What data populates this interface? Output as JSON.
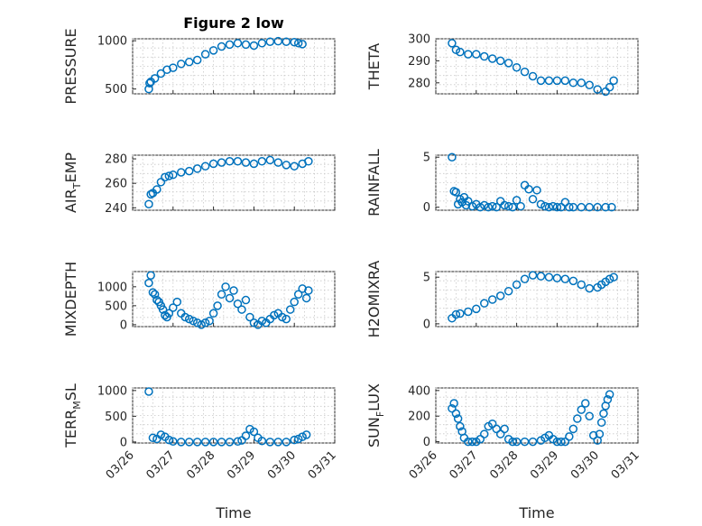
{
  "figure": {
    "background": "#ffffff",
    "marker_color": "#0072BD"
  },
  "chart_data": [
    {
      "type": "scatter",
      "panel": "pressure",
      "title": "Figure 2 low",
      "ylabel_main": "PRESSURE",
      "ylabel_sub": "",
      "ylabel_tail": "",
      "sub_kind": "",
      "yticks": [
        "500",
        "1000"
      ],
      "ytick_values": [
        500,
        1000
      ],
      "ylim": [
        450,
        1020
      ],
      "xlim": [
        0,
        5
      ],
      "xticks": [
        0,
        1,
        2,
        3,
        4,
        5
      ],
      "xticklabels": [],
      "xlabel": "",
      "x": [
        0.4,
        1.0,
        1.5,
        2.0,
        2.5,
        3.0,
        3.5,
        4.0
      ],
      "y": [
        520,
        680,
        760,
        880,
        960,
        970,
        990,
        975
      ],
      "series": [
        {
          "x": [
            0.4,
            0.42,
            0.45,
            0.55,
            0.7,
            0.85,
            1.0,
            1.2,
            1.4,
            1.6,
            1.8,
            2.0,
            2.2,
            2.4,
            2.6,
            2.8,
            3.0,
            3.2,
            3.4,
            3.6,
            3.8,
            4.0,
            4.1,
            4.2
          ],
          "y": [
            500,
            560,
            575,
            610,
            660,
            700,
            720,
            760,
            780,
            800,
            860,
            900,
            940,
            960,
            975,
            960,
            950,
            975,
            990,
            995,
            990,
            985,
            975,
            965
          ]
        }
      ]
    },
    {
      "type": "scatter",
      "panel": "theta",
      "title": "",
      "ylabel_main": "THETA",
      "ylabel_sub": "",
      "ylabel_tail": "",
      "sub_kind": "",
      "yticks": [
        "280",
        "290",
        "300"
      ],
      "ytick_values": [
        280,
        290,
        300
      ],
      "ylim": [
        275,
        300
      ],
      "xlim": [
        0,
        5
      ],
      "xticks": [
        0,
        1,
        2,
        3,
        4,
        5
      ],
      "xticklabels": [],
      "xlabel": "",
      "x": [
        0.4,
        0.5,
        0.6,
        0.8,
        1.0,
        1.2,
        1.4,
        1.6,
        1.8,
        2.0,
        2.2,
        2.4,
        2.6,
        2.8,
        3.0,
        3.2,
        3.4,
        3.6,
        3.8,
        4.0,
        4.2,
        4.3,
        4.4
      ],
      "y": [
        298,
        295,
        294,
        293,
        293,
        292,
        291,
        290,
        289,
        287,
        285,
        283,
        281,
        281,
        281,
        281,
        280,
        280,
        279,
        277,
        276,
        278,
        281
      ]
    },
    {
      "type": "scatter",
      "panel": "air_temp",
      "title": "",
      "ylabel_main": "AIR",
      "ylabel_sub": "T",
      "ylabel_tail": "EMP",
      "sub_kind": "sub",
      "yticks": [
        "240",
        "260",
        "280"
      ],
      "ytick_values": [
        240,
        260,
        280
      ],
      "ylim": [
        238,
        283
      ],
      "xlim": [
        0,
        5
      ],
      "xticks": [
        0,
        1,
        2,
        3,
        4,
        5
      ],
      "xticklabels": [],
      "xlabel": "",
      "x": [
        0.4,
        0.45,
        0.5,
        0.6,
        0.7,
        0.8,
        0.9,
        1.0,
        1.2,
        1.4,
        1.6,
        1.8,
        2.0,
        2.2,
        2.4,
        2.6,
        2.8,
        3.0,
        3.2,
        3.4,
        3.6,
        3.8,
        4.0,
        4.2,
        4.35
      ],
      "y": [
        243,
        251,
        252,
        255,
        261,
        265,
        266,
        267,
        269,
        270,
        272,
        274,
        276,
        277,
        278,
        278,
        277,
        276,
        278,
        279,
        277,
        275,
        274,
        276,
        278
      ]
    },
    {
      "type": "scatter",
      "panel": "rainfall",
      "title": "",
      "ylabel_main": "RAINFALL",
      "ylabel_sub": "",
      "ylabel_tail": "",
      "sub_kind": "",
      "yticks": [
        "0",
        "5"
      ],
      "ytick_values": [
        0,
        5
      ],
      "ylim": [
        -0.3,
        5.2
      ],
      "xlim": [
        0,
        5
      ],
      "xticks": [
        0,
        1,
        2,
        3,
        4,
        5
      ],
      "xticklabels": [],
      "xlabel": "",
      "x": [
        0.4,
        0.45,
        0.5,
        0.55,
        0.6,
        0.65,
        0.7,
        0.75,
        0.8,
        0.9,
        1.0,
        1.1,
        1.2,
        1.3,
        1.4,
        1.5,
        1.6,
        1.7,
        1.8,
        1.9,
        2.0,
        2.1,
        2.2,
        2.3,
        2.4,
        2.5,
        2.6,
        2.7,
        2.8,
        2.9,
        3.0,
        3.1,
        3.2,
        3.3,
        3.4,
        3.6,
        3.8,
        4.0,
        4.2,
        4.35
      ],
      "y": [
        5.0,
        1.6,
        1.5,
        0.3,
        0.8,
        0.5,
        1.0,
        0.2,
        0.6,
        0.1,
        0.3,
        0.0,
        0.2,
        0.0,
        0.1,
        0.0,
        0.6,
        0.2,
        0.1,
        0.0,
        0.7,
        0.1,
        2.2,
        1.8,
        0.8,
        1.7,
        0.3,
        0.1,
        0.0,
        0.1,
        0.0,
        0.0,
        0.5,
        0.0,
        0.0,
        0.0,
        0.0,
        0.0,
        0.0,
        0.0
      ]
    },
    {
      "type": "scatter",
      "panel": "mixdepth",
      "title": "",
      "ylabel_main": "MIXDEPTH",
      "ylabel_sub": "",
      "ylabel_tail": "",
      "sub_kind": "",
      "yticks": [
        "0",
        "500",
        "1000"
      ],
      "ytick_values": [
        0,
        500,
        1000
      ],
      "ylim": [
        -50,
        1400
      ],
      "xlim": [
        0,
        5
      ],
      "xticks": [
        0,
        1,
        2,
        3,
        4,
        5
      ],
      "xticklabels": [],
      "xlabel": "",
      "x": [
        0.4,
        0.45,
        0.5,
        0.55,
        0.6,
        0.65,
        0.7,
        0.75,
        0.8,
        0.85,
        0.9,
        1.0,
        1.1,
        1.2,
        1.3,
        1.4,
        1.5,
        1.6,
        1.7,
        1.8,
        1.9,
        2.0,
        2.1,
        2.2,
        2.3,
        2.4,
        2.5,
        2.6,
        2.7,
        2.8,
        2.9,
        3.0,
        3.1,
        3.2,
        3.3,
        3.4,
        3.5,
        3.6,
        3.7,
        3.8,
        3.9,
        4.0,
        4.1,
        4.2,
        4.3,
        4.35
      ],
      "y": [
        1100,
        1300,
        850,
        800,
        650,
        600,
        500,
        400,
        250,
        200,
        300,
        450,
        600,
        300,
        200,
        150,
        100,
        50,
        0,
        50,
        100,
        300,
        500,
        800,
        1000,
        700,
        900,
        550,
        400,
        650,
        200,
        50,
        0,
        100,
        50,
        150,
        250,
        300,
        200,
        150,
        400,
        600,
        800,
        950,
        700,
        900
      ]
    },
    {
      "type": "scatter",
      "panel": "h2omixra",
      "title": "",
      "ylabel_main": "H2OMIXRA",
      "ylabel_sub": "",
      "ylabel_tail": "",
      "sub_kind": "",
      "yticks": [
        "0",
        "5"
      ],
      "ytick_values": [
        0,
        5
      ],
      "ylim": [
        -0.3,
        5.6
      ],
      "xlim": [
        0,
        5
      ],
      "xticks": [
        0,
        1,
        2,
        3,
        4,
        5
      ],
      "xticklabels": [],
      "xlabel": "",
      "x": [
        0.4,
        0.5,
        0.6,
        0.8,
        1.0,
        1.2,
        1.4,
        1.6,
        1.8,
        2.0,
        2.2,
        2.4,
        2.6,
        2.8,
        3.0,
        3.2,
        3.4,
        3.6,
        3.8,
        4.0,
        4.1,
        4.2,
        4.3,
        4.4
      ],
      "y": [
        0.6,
        1.0,
        1.1,
        1.3,
        1.6,
        2.2,
        2.6,
        3.0,
        3.5,
        4.2,
        4.8,
        5.2,
        5.1,
        5.0,
        4.9,
        4.8,
        4.6,
        4.2,
        3.8,
        3.9,
        4.2,
        4.5,
        4.8,
        5.0
      ]
    },
    {
      "type": "scatter",
      "panel": "terr_msl",
      "title": "",
      "ylabel_main": "TERR",
      "ylabel_sub": "M",
      "ylabel_tail": "SL",
      "sub_kind": "sub",
      "yticks": [
        "0",
        "500",
        "1000"
      ],
      "ytick_values": [
        0,
        500,
        1000
      ],
      "ylim": [
        -20,
        1050
      ],
      "xlim": [
        0,
        5
      ],
      "xticks": [
        0,
        1,
        2,
        3,
        4,
        5
      ],
      "xticklabels": [
        "03/26",
        "03/27",
        "03/28",
        "03/29",
        "03/30",
        "03/31"
      ],
      "xlabel": "Time",
      "x": [
        0.4,
        0.5,
        0.6,
        0.7,
        0.8,
        0.9,
        1.0,
        1.2,
        1.4,
        1.6,
        1.8,
        2.0,
        2.2,
        2.4,
        2.6,
        2.7,
        2.8,
        2.9,
        3.0,
        3.1,
        3.2,
        3.4,
        3.6,
        3.8,
        4.0,
        4.1,
        4.2,
        4.3
      ],
      "y": [
        980,
        80,
        60,
        140,
        100,
        40,
        10,
        0,
        0,
        0,
        0,
        0,
        0,
        0,
        10,
        30,
        120,
        250,
        200,
        80,
        20,
        0,
        0,
        0,
        40,
        60,
        100,
        140
      ]
    },
    {
      "type": "scatter",
      "panel": "sun_flux",
      "title": "",
      "ylabel_main": "SUN",
      "ylabel_sub": "F",
      "ylabel_tail": "LUX",
      "sub_kind": "sub",
      "yticks": [
        "0",
        "200",
        "400"
      ],
      "ytick_values": [
        0,
        200,
        400
      ],
      "ylim": [
        -10,
        420
      ],
      "xlim": [
        0,
        5
      ],
      "xticks": [
        0,
        1,
        2,
        3,
        4,
        5
      ],
      "xticklabels": [
        "03/26",
        "03/27",
        "03/28",
        "03/29",
        "03/30",
        "03/31"
      ],
      "xlabel": "Time",
      "x": [
        0.4,
        0.45,
        0.5,
        0.55,
        0.6,
        0.65,
        0.7,
        0.8,
        0.9,
        1.0,
        1.1,
        1.2,
        1.3,
        1.4,
        1.5,
        1.6,
        1.7,
        1.8,
        1.9,
        2.0,
        2.2,
        2.4,
        2.6,
        2.7,
        2.8,
        2.9,
        3.0,
        3.1,
        3.2,
        3.3,
        3.4,
        3.5,
        3.6,
        3.7,
        3.8,
        3.9,
        4.0,
        4.05,
        4.1,
        4.15,
        4.2,
        4.25,
        4.3
      ],
      "y": [
        260,
        300,
        220,
        180,
        120,
        80,
        30,
        0,
        0,
        0,
        20,
        60,
        120,
        140,
        100,
        60,
        100,
        20,
        0,
        0,
        0,
        0,
        10,
        30,
        50,
        20,
        0,
        0,
        0,
        40,
        100,
        180,
        250,
        300,
        200,
        50,
        10,
        60,
        150,
        220,
        280,
        330,
        370
      ]
    }
  ]
}
